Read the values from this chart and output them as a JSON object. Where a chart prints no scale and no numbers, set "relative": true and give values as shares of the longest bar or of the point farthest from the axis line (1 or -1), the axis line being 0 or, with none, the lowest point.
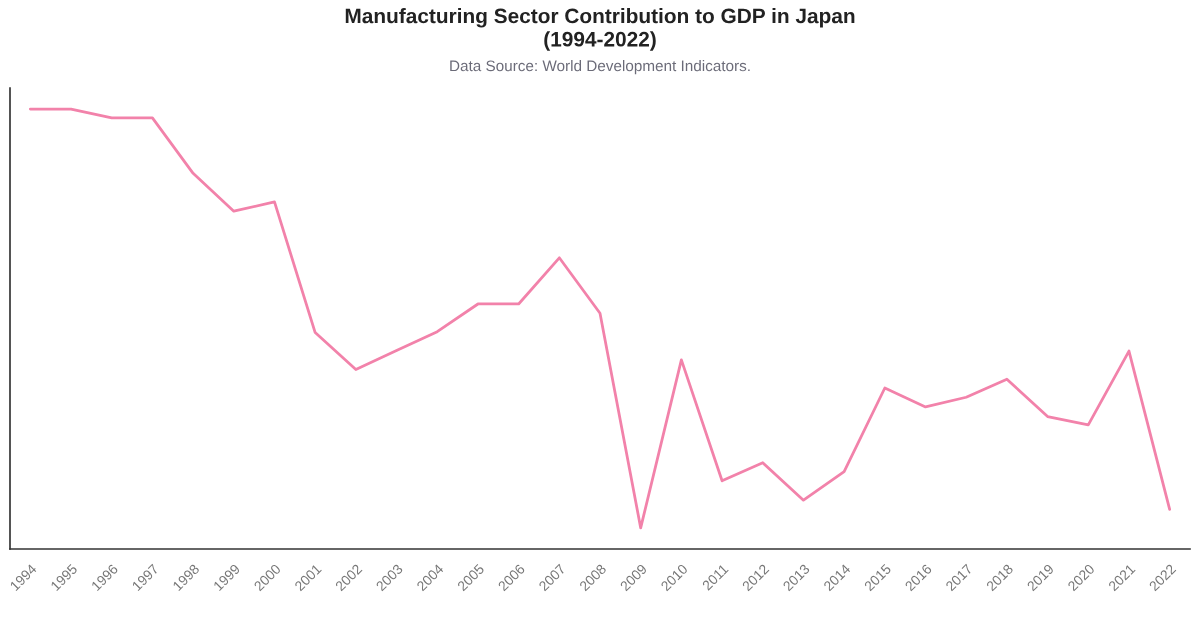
{
  "chart_data": {
    "type": "line",
    "title": "Manufacturing Sector Contribution to GDP in Japan\n(1994-2022)",
    "subtitle": "Data Source: World Development Indicators.",
    "categories": [
      "1994",
      "1995",
      "1996",
      "1997",
      "1998",
      "1999",
      "2000",
      "2001",
      "2002",
      "2003",
      "2004",
      "2005",
      "2006",
      "2007",
      "2008",
      "2009",
      "2010",
      "2011",
      "2012",
      "2013",
      "2014",
      "2015",
      "2016",
      "2017",
      "2018",
      "2019",
      "2020",
      "2021",
      "2022"
    ],
    "relative": true,
    "series": [
      {
        "color": "#f282aa",
        "values": [
          1,
          1,
          0.98,
          0.98,
          0.854,
          0.768,
          0.789,
          0.492,
          0.408,
          0.451,
          0.494,
          0.557,
          0.557,
          0.662,
          0.536,
          0.048,
          0.43,
          0.155,
          0.196,
          0.111,
          0.176,
          0.366,
          0.323,
          0.345,
          0.386,
          0.301,
          0.282,
          0.45,
          0.09
        ]
      }
    ]
  }
}
